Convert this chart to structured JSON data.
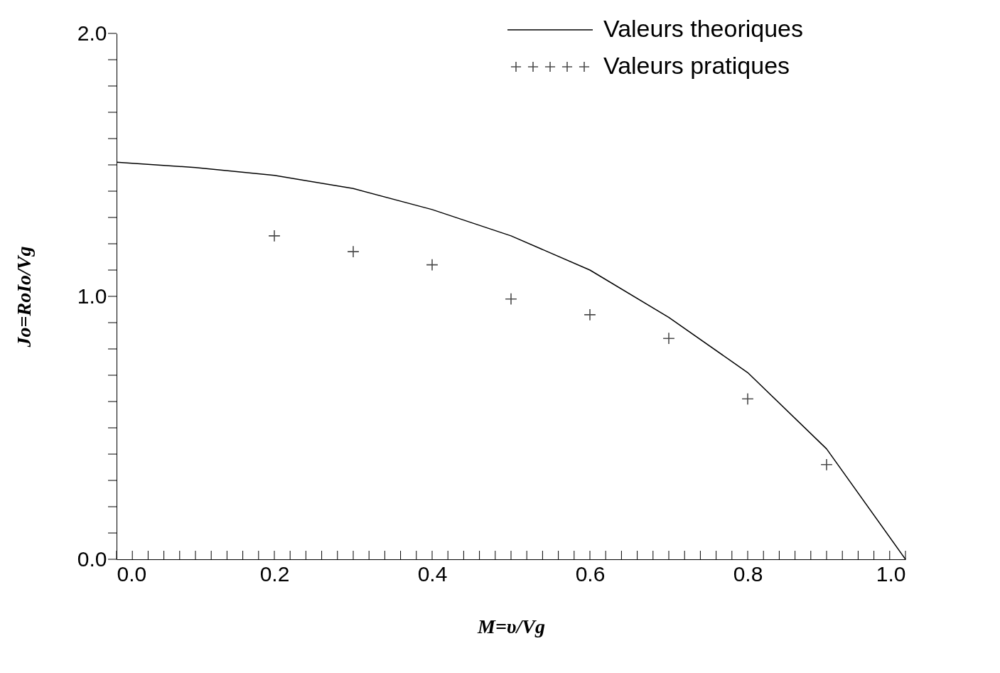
{
  "chart_data": {
    "type": "line",
    "xlabel": "M=υ/Vg",
    "ylabel": "Jo=RoIo/Vg",
    "xlim": [
      0,
      1.0
    ],
    "ylim": [
      0,
      2.0
    ],
    "xticks": [
      {
        "value": 0,
        "label": "0.0"
      },
      {
        "value": 0.02,
        "label": null
      },
      {
        "value": 0.04,
        "label": null
      },
      {
        "value": 0.06,
        "label": null
      },
      {
        "value": 0.08,
        "label": null
      },
      {
        "value": 0.1,
        "label": null
      },
      {
        "value": 0.12,
        "label": null
      },
      {
        "value": 0.14,
        "label": null
      },
      {
        "value": 0.16,
        "label": null
      },
      {
        "value": 0.18,
        "label": null
      },
      {
        "value": 0.2,
        "label": "0.2"
      },
      {
        "value": 0.22,
        "label": null
      },
      {
        "value": 0.24,
        "label": null
      },
      {
        "value": 0.26,
        "label": null
      },
      {
        "value": 0.28,
        "label": null
      },
      {
        "value": 0.3,
        "label": null
      },
      {
        "value": 0.32,
        "label": null
      },
      {
        "value": 0.34,
        "label": null
      },
      {
        "value": 0.36,
        "label": null
      },
      {
        "value": 0.38,
        "label": null
      },
      {
        "value": 0.4,
        "label": "0.4"
      },
      {
        "value": 0.42,
        "label": null
      },
      {
        "value": 0.44,
        "label": null
      },
      {
        "value": 0.46,
        "label": null
      },
      {
        "value": 0.48,
        "label": null
      },
      {
        "value": 0.5,
        "label": null
      },
      {
        "value": 0.52,
        "label": null
      },
      {
        "value": 0.54,
        "label": null
      },
      {
        "value": 0.56,
        "label": null
      },
      {
        "value": 0.58,
        "label": null
      },
      {
        "value": 0.6,
        "label": "0.6"
      },
      {
        "value": 0.62,
        "label": null
      },
      {
        "value": 0.64,
        "label": null
      },
      {
        "value": 0.66,
        "label": null
      },
      {
        "value": 0.68,
        "label": null
      },
      {
        "value": 0.7,
        "label": null
      },
      {
        "value": 0.72,
        "label": null
      },
      {
        "value": 0.74,
        "label": null
      },
      {
        "value": 0.76,
        "label": null
      },
      {
        "value": 0.78,
        "label": null
      },
      {
        "value": 0.8,
        "label": "0.8"
      },
      {
        "value": 0.82,
        "label": null
      },
      {
        "value": 0.84,
        "label": null
      },
      {
        "value": 0.86,
        "label": null
      },
      {
        "value": 0.88,
        "label": null
      },
      {
        "value": 0.9,
        "label": null
      },
      {
        "value": 0.92,
        "label": null
      },
      {
        "value": 0.94,
        "label": null
      },
      {
        "value": 0.96,
        "label": null
      },
      {
        "value": 0.98,
        "label": null
      },
      {
        "value": 1.0,
        "label": "1.0"
      }
    ],
    "yticks": [
      {
        "value": 0,
        "label": "0.0"
      },
      {
        "value": 0.1,
        "label": null
      },
      {
        "value": 0.2,
        "label": null
      },
      {
        "value": 0.3,
        "label": null
      },
      {
        "value": 0.4,
        "label": null
      },
      {
        "value": 0.5,
        "label": null
      },
      {
        "value": 0.6,
        "label": null
      },
      {
        "value": 0.7,
        "label": null
      },
      {
        "value": 0.8,
        "label": null
      },
      {
        "value": 0.9,
        "label": null
      },
      {
        "value": 1.0,
        "label": "1.0"
      },
      {
        "value": 1.1,
        "label": null
      },
      {
        "value": 1.2,
        "label": null
      },
      {
        "value": 1.3,
        "label": null
      },
      {
        "value": 1.4,
        "label": null
      },
      {
        "value": 1.5,
        "label": null
      },
      {
        "value": 1.6,
        "label": null
      },
      {
        "value": 1.7,
        "label": null
      },
      {
        "value": 1.8,
        "label": null
      },
      {
        "value": 1.9,
        "label": null
      },
      {
        "value": 2.0,
        "label": "2.0"
      }
    ],
    "grid": false,
    "legend": "top right",
    "series": [
      {
        "name": "Valeurs theoriques",
        "type": "line",
        "color": "#000000",
        "line_style": "solid",
        "marker": "none",
        "x": [
          0,
          0.1,
          0.2,
          0.3,
          0.4,
          0.5,
          0.6,
          0.7,
          0.8,
          0.9,
          1.0
        ],
        "values": [
          1.51,
          1.49,
          1.46,
          1.41,
          1.33,
          1.23,
          1.1,
          0.92,
          0.71,
          0.42,
          0
        ]
      },
      {
        "name": "Valeurs pratiques",
        "type": "scatter",
        "color": "#000000",
        "marker": "cross",
        "x": [
          0.2,
          0.3,
          0.4,
          0.5,
          0.6,
          0.7,
          0.8,
          0.9
        ],
        "values": [
          1.23,
          1.17,
          1.12,
          0.99,
          0.93,
          0.84,
          0.61,
          0.36
        ]
      }
    ]
  }
}
